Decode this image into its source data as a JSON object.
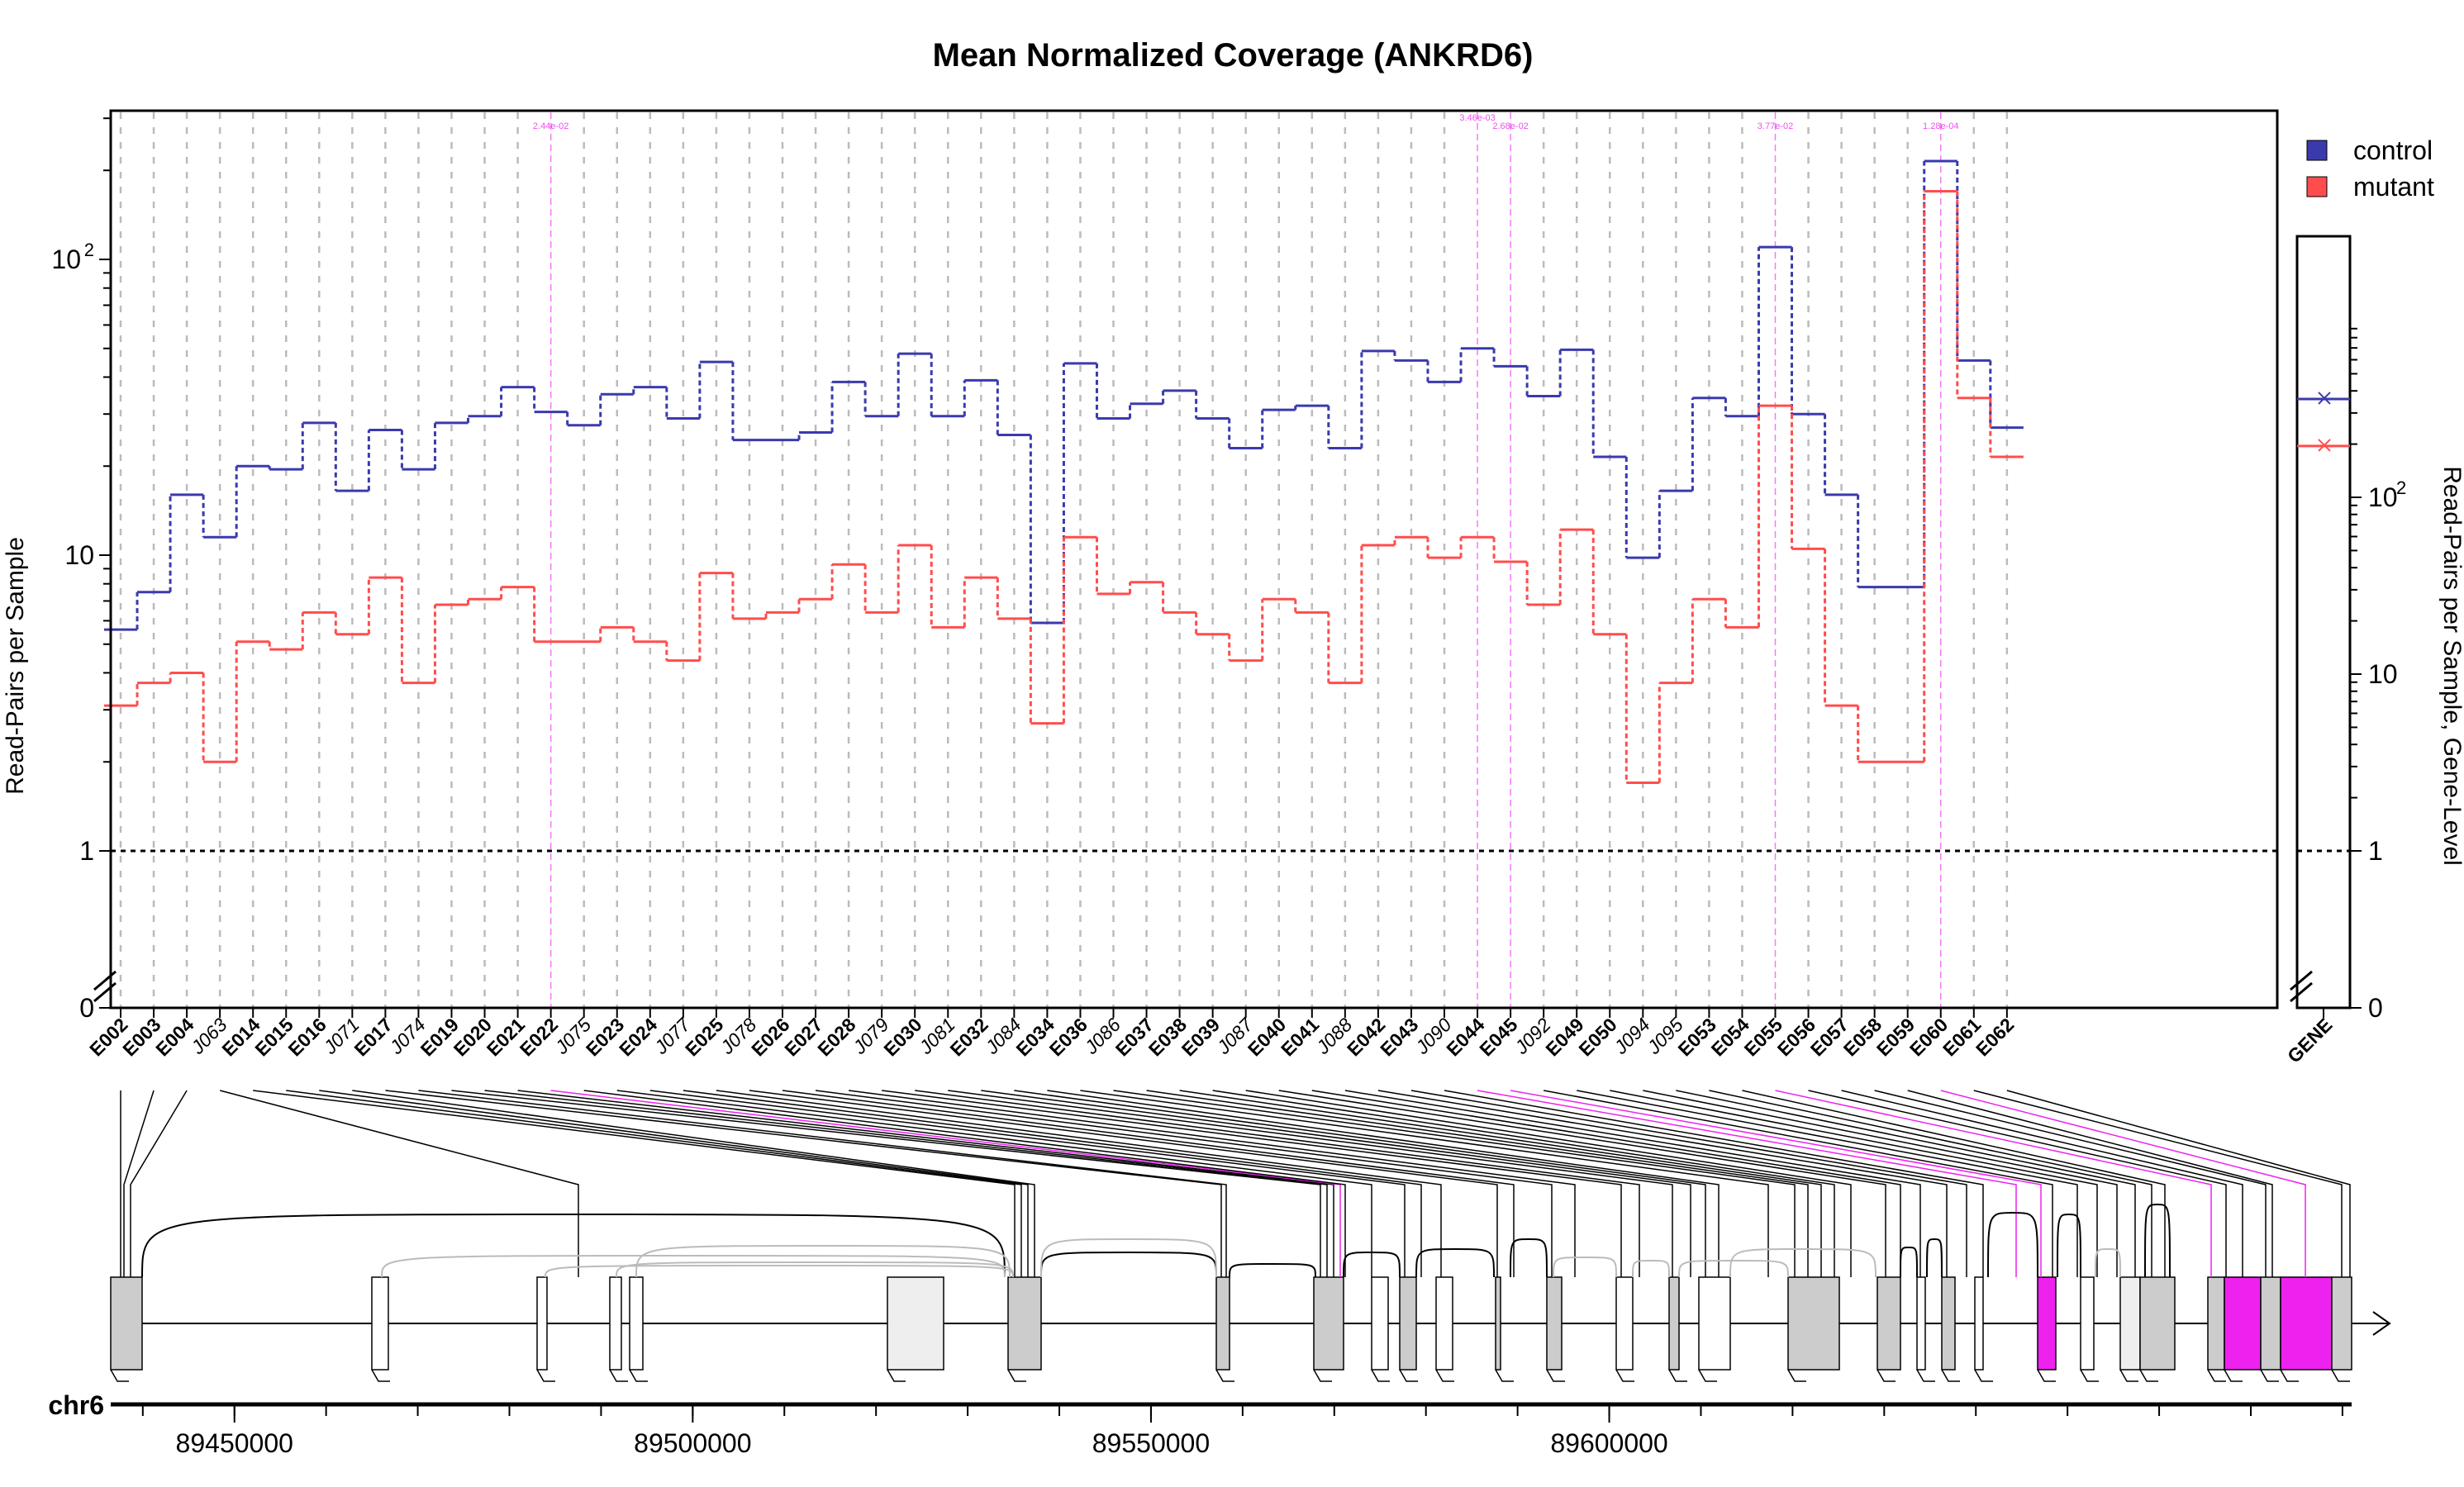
{
  "chart_data": {
    "type": "line",
    "title": "Mean Normalized Coverage (ANKRD6)",
    "ylabel": "Read-Pairs per Sample",
    "ylabel_right": "Read-Pairs per Sample, Gene-Level",
    "yscale": "log",
    "main_ylim": [
      0,
      200
    ],
    "gene_ylim": [
      0,
      700
    ],
    "main_yticks": [
      {
        "v": 100,
        "base": "10",
        "exp": "2"
      },
      {
        "v": 10,
        "base": "10",
        "exp": ""
      },
      {
        "v": 1,
        "base": "1",
        "exp": ""
      },
      {
        "v": 0,
        "base": "0",
        "exp": ""
      }
    ],
    "gene_yticks": [
      {
        "v": 100,
        "base": "10",
        "exp": "2"
      },
      {
        "v": 10,
        "base": "10",
        "exp": ""
      },
      {
        "v": 1,
        "base": "1",
        "exp": ""
      },
      {
        "v": 0,
        "base": "0",
        "exp": ""
      }
    ],
    "features": [
      "E002",
      "E003",
      "E004",
      "J063",
      "E014",
      "E015",
      "E016",
      "J071",
      "E017",
      "J074",
      "E019",
      "E020",
      "E021",
      "E022",
      "J075",
      "E023",
      "E024",
      "J077",
      "E025",
      "J078",
      "E026",
      "E027",
      "E028",
      "J079",
      "E030",
      "J081",
      "E032",
      "J084",
      "E034",
      "E036",
      "J086",
      "E037",
      "E038",
      "E039",
      "J087",
      "E040",
      "E041",
      "J088",
      "E042",
      "E043",
      "J090",
      "E044",
      "E045",
      "J092",
      "E049",
      "E050",
      "J094",
      "J095",
      "E053",
      "E054",
      "E055",
      "E056",
      "E057",
      "E058",
      "E059",
      "E060",
      "E061",
      "E062"
    ],
    "highlighted": [
      "E022",
      "E044",
      "E045",
      "E055",
      "E060"
    ],
    "series": [
      {
        "name": "control",
        "color": "#3a3aad",
        "values": [
          5.6,
          7.5,
          16,
          11.5,
          20,
          19.5,
          28,
          16.5,
          26.5,
          19.5,
          28,
          29.5,
          37,
          30.5,
          27.5,
          35,
          37,
          29,
          45,
          24.5,
          24.5,
          26,
          38.5,
          29.5,
          48,
          29.5,
          39,
          25.5,
          5.9,
          44.5,
          29,
          32.5,
          36,
          29,
          23,
          31,
          32,
          23,
          49,
          45.5,
          38.5,
          50,
          43.5,
          34.5,
          49.5,
          21.5,
          9.8,
          16.5,
          34,
          29.5,
          110,
          30,
          16,
          7.8,
          7.8,
          215,
          45.5,
          27
        ]
      },
      {
        "name": "mutant",
        "color": "#ff4d4d",
        "values": [
          3.1,
          3.7,
          4.0,
          2.0,
          5.1,
          4.8,
          6.4,
          5.4,
          8.4,
          3.7,
          6.8,
          7.1,
          7.8,
          5.1,
          5.1,
          5.7,
          5.1,
          4.4,
          8.7,
          6.1,
          6.4,
          7.1,
          9.3,
          6.4,
          10.8,
          5.7,
          8.4,
          6.1,
          2.7,
          11.5,
          7.4,
          8.1,
          6.4,
          5.4,
          4.4,
          7.1,
          6.4,
          3.7,
          10.8,
          11.5,
          9.8,
          11.5,
          9.5,
          6.8,
          12.2,
          5.4,
          1.7,
          3.7,
          7.1,
          5.7,
          32,
          10.5,
          3.1,
          2.0,
          2.0,
          170,
          34,
          21.5
        ]
      }
    ],
    "gene_level": {
      "control": 360,
      "mutant": 195
    },
    "legend_position": "top-right",
    "reference_line": 1,
    "pvalue_labels": [
      {
        "feature": "E022",
        "text": "2.44e-02"
      },
      {
        "feature": "E044",
        "text": "3.46e-03"
      },
      {
        "feature": "E045",
        "text": "2.68e-02"
      },
      {
        "feature": "E055",
        "text": "3.77e-02"
      },
      {
        "feature": "E060",
        "text": "1.28e-04"
      }
    ]
  },
  "gene_label": "GENE",
  "track": {
    "chrom": "chr6",
    "genome_ticks": [
      {
        "pos": 89450000,
        "label": "89450000"
      },
      {
        "pos": 89500000,
        "label": "89500000"
      },
      {
        "pos": 89550000,
        "label": "89550000"
      },
      {
        "pos": 89600000,
        "label": "89600000"
      }
    ]
  },
  "colors": {
    "highlight": "#ee22ee",
    "exon": "#cccccc",
    "grid": "#bbbbbb"
  }
}
